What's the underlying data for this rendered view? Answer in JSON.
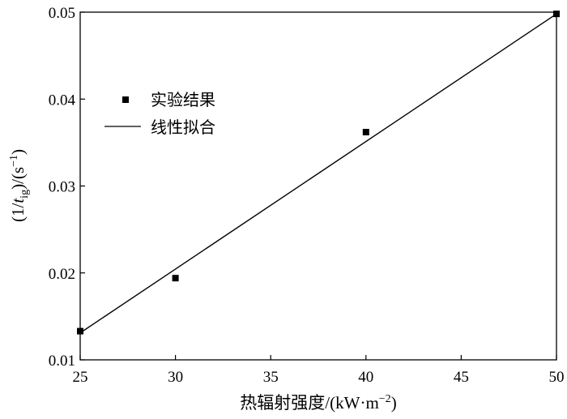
{
  "chart_data": {
    "type": "scatter",
    "x_label": {
      "text": "热辐射强度/(kW·m",
      "exponent": "−2",
      "suffix": ")"
    },
    "y_label": {
      "open": "(1/",
      "var": "t",
      "subscript": "ig",
      "middle": ")/(s",
      "exponent": "−1",
      "close": ")"
    },
    "xlim": [
      25,
      50
    ],
    "ylim": [
      0.01,
      0.05
    ],
    "x_ticks": [
      "25",
      "30",
      "35",
      "40",
      "45",
      "50"
    ],
    "x_tick_values": [
      25,
      30,
      35,
      40,
      45,
      50
    ],
    "y_ticks": [
      "0.01",
      "0.02",
      "0.03",
      "0.04",
      "0.05"
    ],
    "y_tick_values": [
      0.01,
      0.02,
      0.03,
      0.04,
      0.05
    ],
    "grid": false,
    "legend_position": "upper-left",
    "series": [
      {
        "name": "实验结果",
        "kind": "scatter",
        "marker": "square",
        "color": "#000000",
        "points": [
          {
            "x": 25,
            "y": 0.0133
          },
          {
            "x": 30,
            "y": 0.0194
          },
          {
            "x": 40,
            "y": 0.0362
          },
          {
            "x": 50,
            "y": 0.0498
          }
        ]
      },
      {
        "name": "线性拟合",
        "kind": "line",
        "color": "#000000",
        "points": [
          {
            "x": 25,
            "y": 0.0131
          },
          {
            "x": 50,
            "y": 0.0498
          }
        ]
      }
    ]
  }
}
